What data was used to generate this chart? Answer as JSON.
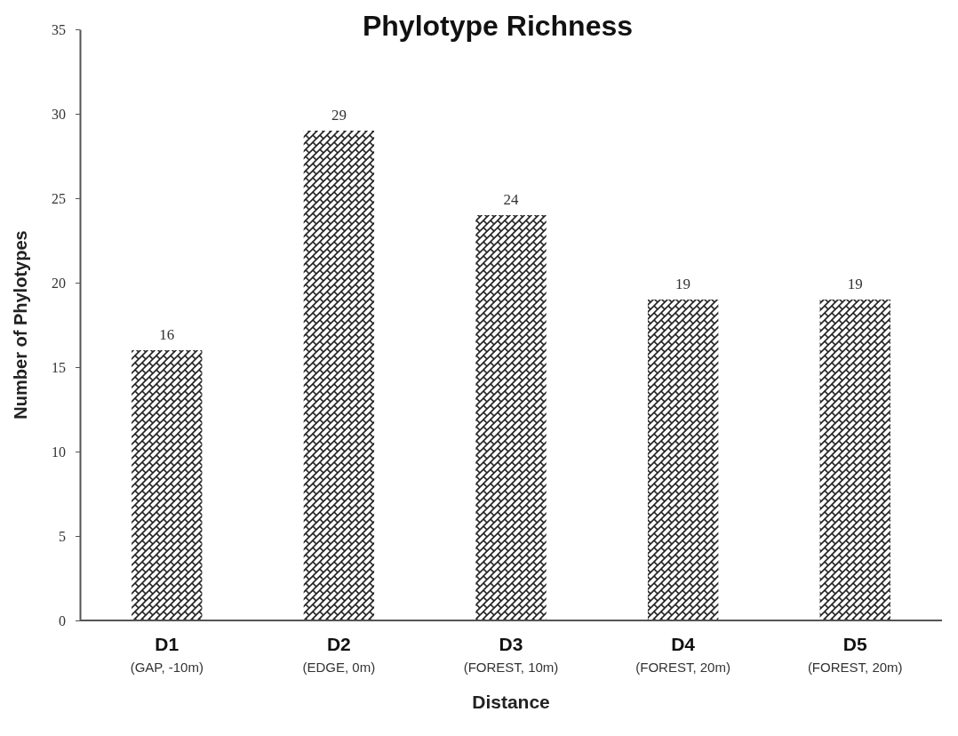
{
  "chart_data": {
    "type": "bar",
    "title": "Phylotype Richness",
    "xlabel": "Distance",
    "ylabel": "Number of Phylotypes",
    "categories": [
      "D1\n(GAP, -10m)",
      "D2\n(EDGE, 0m)",
      "D3\n(FOREST, 10m)",
      "D4\n(FOREST, 20m)",
      "D5\n(FOREST, 20m)"
    ],
    "values": [
      16,
      29,
      24,
      19,
      19
    ],
    "color": "#222222",
    "ylim": [
      0,
      35
    ],
    "yticks": [
      0,
      5,
      10,
      15,
      20,
      25,
      30,
      35
    ],
    "grid": false,
    "data_labels": true
  }
}
